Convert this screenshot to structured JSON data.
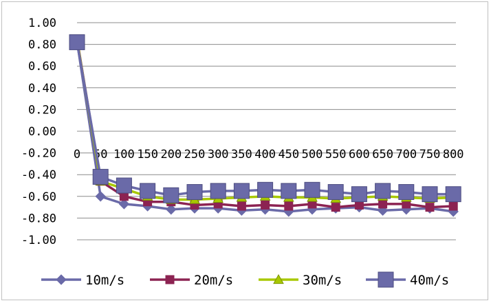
{
  "chart_data": {
    "type": "line",
    "title": "",
    "xlabel": "",
    "ylabel": "",
    "categories": [
      "0",
      "50",
      "100",
      "150",
      "200",
      "250",
      "300",
      "350",
      "400",
      "450",
      "500",
      "550",
      "600",
      "650",
      "700",
      "750",
      "800"
    ],
    "y_ticks": [
      "1.00",
      "0.80",
      "0.60",
      "0.40",
      "0.20",
      "0.00",
      "-0.20",
      "-0.40",
      "-0.60",
      "-0.80",
      "-1.00"
    ],
    "ylim": [
      -1.0,
      1.0
    ],
    "grid": "horizontal",
    "legend_position": "bottom",
    "series": [
      {
        "name": "10m/s",
        "color": "#6a6aa8",
        "marker": "diamond",
        "values": [
          0.83,
          -0.6,
          -0.67,
          -0.69,
          -0.72,
          -0.71,
          -0.71,
          -0.73,
          -0.72,
          -0.74,
          -0.72,
          -0.71,
          -0.7,
          -0.73,
          -0.72,
          -0.71,
          -0.74
        ]
      },
      {
        "name": "20m/s",
        "color": "#8c2352",
        "marker": "square",
        "values": [
          0.85,
          -0.46,
          -0.6,
          -0.65,
          -0.65,
          -0.68,
          -0.67,
          -0.69,
          -0.68,
          -0.69,
          -0.67,
          -0.7,
          -0.68,
          -0.67,
          -0.67,
          -0.7,
          -0.69
        ]
      },
      {
        "name": "30m/s",
        "color": "#a8c800",
        "marker": "triangle",
        "values": [
          0.84,
          -0.46,
          -0.53,
          -0.6,
          -0.63,
          -0.63,
          -0.62,
          -0.61,
          -0.6,
          -0.61,
          -0.61,
          -0.62,
          -0.61,
          -0.6,
          -0.61,
          -0.62,
          -0.61
        ]
      },
      {
        "name": "40m/s",
        "color": "#6a6aa8",
        "marker": "square-large",
        "values": [
          0.82,
          -0.42,
          -0.5,
          -0.55,
          -0.59,
          -0.56,
          -0.55,
          -0.55,
          -0.54,
          -0.55,
          -0.54,
          -0.56,
          -0.58,
          -0.55,
          -0.56,
          -0.58,
          -0.58
        ]
      }
    ]
  }
}
